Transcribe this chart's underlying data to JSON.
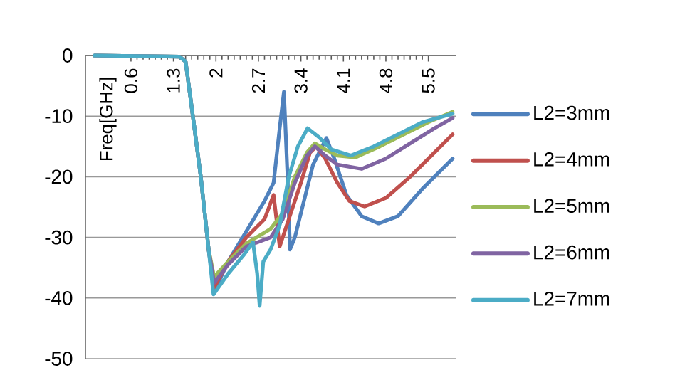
{
  "chart_data": {
    "type": "line",
    "ylabel": "Freq[GHz]",
    "xlim": [
      -0.15,
      5.95
    ],
    "xticks": [
      0.6,
      1.3,
      2,
      2.7,
      3.4,
      4.1,
      4.8,
      5.5
    ],
    "ylim": [
      -50,
      0
    ],
    "yticks": [
      -50,
      -40,
      -30,
      -20,
      -10,
      0
    ],
    "grid": "y",
    "legend": "right",
    "marker": "none",
    "line_style": "solid",
    "series": [
      {
        "name": "L2=3mm",
        "color": "#4f81bd",
        "x": [
          0,
          1.4,
          1.5,
          1.62,
          1.75,
          1.88,
          1.97,
          2.2,
          2.5,
          2.8,
          2.95,
          3.05,
          3.12,
          3.18,
          3.22,
          3.3,
          3.45,
          3.6,
          3.82,
          3.95,
          4.15,
          4.4,
          4.68,
          5.0,
          5.4,
          5.9
        ],
        "values": [
          0,
          -0.2,
          -1,
          -10,
          -20,
          -32,
          -39,
          -34,
          -29,
          -24,
          -21,
          -12,
          -6,
          -20,
          -32,
          -30,
          -24,
          -18,
          -13.6,
          -17,
          -23,
          -26.5,
          -27.7,
          -26.5,
          -22,
          -17
        ]
      },
      {
        "name": "L2=4mm",
        "color": "#c0504d",
        "x": [
          1.88,
          1.97,
          2.2,
          2.5,
          2.8,
          2.95,
          3.05,
          3.2,
          3.4,
          3.55,
          3.65,
          3.8,
          4.0,
          4.2,
          4.45,
          4.8,
          5.2,
          5.6,
          5.9
        ],
        "values": [
          -32,
          -38.3,
          -34,
          -30,
          -27,
          -23,
          -31.5,
          -27,
          -21,
          -16,
          -15,
          -17,
          -21,
          -24,
          -24.9,
          -23.5,
          -20,
          -16,
          -13
        ]
      },
      {
        "name": "L2=5mm",
        "color": "#9bbb59",
        "x": [
          0,
          1.4,
          1.5,
          1.62,
          1.75,
          1.88,
          1.97,
          2.2,
          2.5,
          2.9,
          3.1,
          3.3,
          3.5,
          3.63,
          3.8,
          4.0,
          4.3,
          4.7,
          5.1,
          5.5,
          5.9
        ],
        "values": [
          0,
          -0.2,
          -1,
          -10,
          -20,
          -32,
          -36.5,
          -34,
          -31,
          -28.6,
          -26,
          -20,
          -16,
          -14.5,
          -15.5,
          -16.5,
          -16.8,
          -15,
          -13,
          -11,
          -9.3
        ]
      },
      {
        "name": "L2=6mm",
        "color": "#8064a2",
        "x": [
          0,
          1.4,
          1.5,
          1.62,
          1.75,
          1.88,
          1.97,
          2.2,
          2.5,
          2.9,
          3.1,
          3.3,
          3.5,
          3.63,
          3.8,
          4.0,
          4.4,
          4.8,
          5.2,
          5.6,
          5.9
        ],
        "values": [
          0,
          -0.2,
          -1,
          -10,
          -20,
          -32,
          -37.5,
          -34.5,
          -31.5,
          -30,
          -27,
          -21,
          -16.5,
          -15,
          -16.5,
          -18,
          -18.7,
          -17,
          -14.5,
          -12,
          -10.3
        ]
      },
      {
        "name": "L2=7mm",
        "color": "#4bacc6",
        "x": [
          0,
          1.4,
          1.5,
          1.62,
          1.75,
          1.88,
          1.96,
          2.2,
          2.45,
          2.61,
          2.68,
          2.72,
          2.78,
          2.9,
          3.05,
          3.2,
          3.35,
          3.51,
          3.7,
          3.9,
          4.22,
          4.6,
          5.0,
          5.4,
          5.9
        ],
        "values": [
          0,
          -0.2,
          -1,
          -10,
          -20,
          -32,
          -39.4,
          -36,
          -33,
          -30.8,
          -36,
          -41.3,
          -34,
          -32,
          -28,
          -20,
          -15,
          -12,
          -13.5,
          -15.5,
          -16.5,
          -15,
          -13,
          -11,
          -9.6
        ]
      }
    ]
  }
}
